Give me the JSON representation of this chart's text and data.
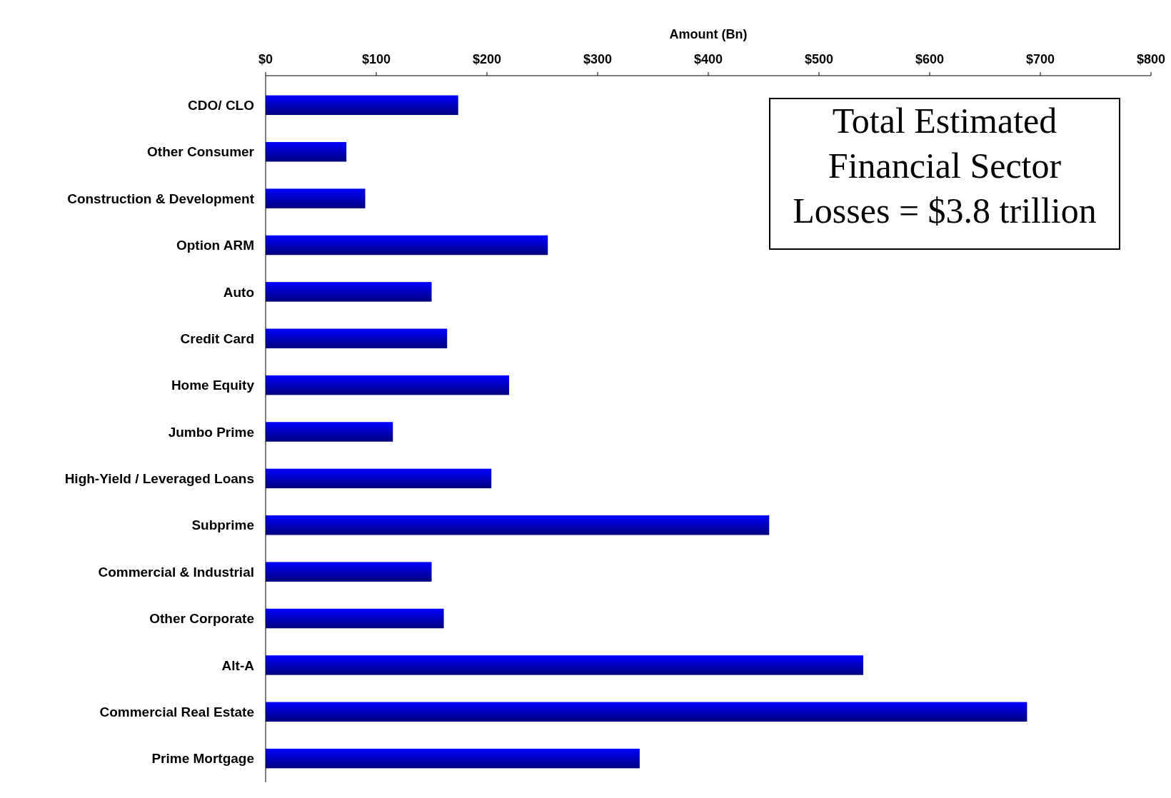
{
  "chart_data": {
    "type": "bar",
    "orientation": "horizontal",
    "xlabel": "Amount (Bn)",
    "categories": [
      "CDO/ CLO",
      "Other Consumer",
      "Construction & Development",
      "Option ARM",
      "Auto",
      "Credit Card",
      "Home Equity",
      "Jumbo Prime",
      "High-Yield / Leveraged Loans",
      "Subprime",
      "Commercial & Industrial",
      "Other Corporate",
      "Alt-A",
      "Commercial Real Estate",
      "Prime Mortgage"
    ],
    "values": [
      174,
      73,
      90,
      255,
      150,
      164,
      220,
      115,
      204,
      455,
      150,
      161,
      540,
      688,
      338
    ],
    "color": "#0000ff",
    "xlim": [
      0,
      800
    ],
    "xticks": [
      {
        "value": 0,
        "label": "$0"
      },
      {
        "value": 100,
        "label": "$100"
      },
      {
        "value": 200,
        "label": "$200"
      },
      {
        "value": 300,
        "label": "$300"
      },
      {
        "value": 400,
        "label": "$400"
      },
      {
        "value": 500,
        "label": "$500"
      },
      {
        "value": 600,
        "label": "$600"
      },
      {
        "value": 700,
        "label": "$700"
      },
      {
        "value": 800,
        "label": "$800"
      }
    ],
    "annotations": [
      "Total Estimated Financial Sector Losses = $3.8 trillion"
    ]
  }
}
